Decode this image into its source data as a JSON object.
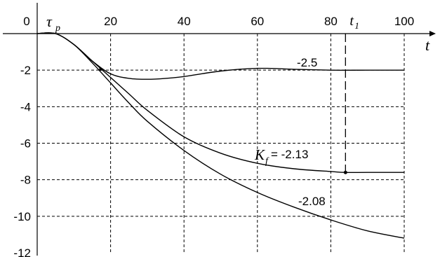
{
  "chart_data": {
    "type": "line",
    "x_ticks": [
      "0",
      "20",
      "40",
      "60",
      "80",
      "100"
    ],
    "y_ticks": [
      "-2",
      "-4",
      "-6",
      "-8",
      "-10",
      "-12"
    ],
    "xlim": [
      0,
      100
    ],
    "ylim": [
      -12,
      0
    ],
    "grid": true,
    "axis_labels": {
      "x": "t",
      "tau": "τ",
      "tau_sub": "p",
      "t1": "t",
      "t1_sub": "1"
    },
    "t1_value": 84,
    "series": [
      {
        "name": "-2.5",
        "x": [
          0,
          5,
          10,
          15,
          20,
          25,
          30,
          35,
          40,
          50,
          60,
          70,
          80,
          90,
          100
        ],
        "y": [
          0,
          0,
          -0.6,
          -1.5,
          -2.2,
          -2.45,
          -2.5,
          -2.45,
          -2.35,
          -2.05,
          -1.9,
          -1.95,
          -2.0,
          -2.0,
          -2.0
        ]
      },
      {
        "name": "-2.13",
        "label_prefix": "K",
        "label_sub": "f",
        "label_value": " = -2.13",
        "x": [
          0,
          5,
          10,
          15,
          20,
          25,
          30,
          40,
          50,
          60,
          70,
          80,
          84,
          90,
          100
        ],
        "y": [
          0,
          0,
          -0.6,
          -1.5,
          -2.4,
          -3.3,
          -4.2,
          -5.65,
          -6.55,
          -7.1,
          -7.4,
          -7.55,
          -7.6,
          -7.6,
          -7.6
        ]
      },
      {
        "name": "-2.08",
        "x": [
          0,
          5,
          10,
          15,
          20,
          25,
          30,
          40,
          50,
          60,
          70,
          80,
          90,
          100
        ],
        "y": [
          0,
          0,
          -0.6,
          -1.6,
          -2.7,
          -3.8,
          -4.8,
          -6.4,
          -7.7,
          -8.7,
          -9.5,
          -10.2,
          -10.8,
          -11.2
        ]
      }
    ]
  }
}
